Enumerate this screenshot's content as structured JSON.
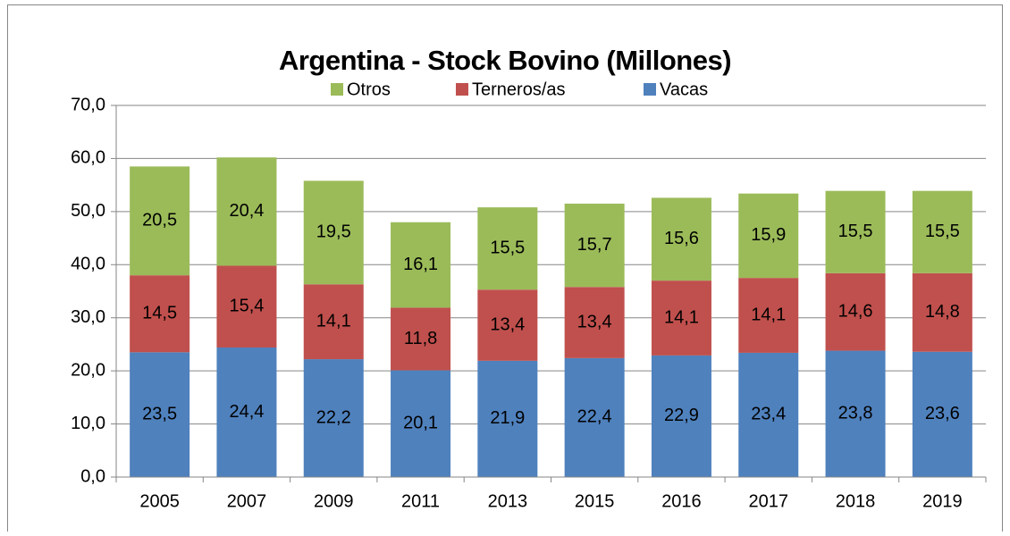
{
  "chart_data": {
    "type": "stacked_bar",
    "title": "Argentina - Stock Bovino (Millones)",
    "categories": [
      "2005",
      "2007",
      "2009",
      "2011",
      "2013",
      "2015",
      "2016",
      "2017",
      "2018",
      "2019"
    ],
    "series": [
      {
        "name": "Vacas",
        "color": "#4f81bd",
        "values": [
          23.5,
          24.4,
          22.2,
          20.1,
          21.9,
          22.4,
          22.9,
          23.4,
          23.8,
          23.6
        ],
        "value_labels": [
          "23,5",
          "24,4",
          "22,2",
          "20,1",
          "21,9",
          "22,4",
          "22,9",
          "23,4",
          "23,8",
          "23,6"
        ]
      },
      {
        "name": "Terneros/as",
        "color": "#c0504d",
        "values": [
          14.5,
          15.4,
          14.1,
          11.8,
          13.4,
          13.4,
          14.1,
          14.1,
          14.6,
          14.8
        ],
        "value_labels": [
          "14,5",
          "15,4",
          "14,1",
          "11,8",
          "13,4",
          "13,4",
          "14,1",
          "14,1",
          "14,6",
          "14,8"
        ]
      },
      {
        "name": "Otros",
        "color": "#9bbb59",
        "values": [
          20.5,
          20.4,
          19.5,
          16.1,
          15.5,
          15.7,
          15.6,
          15.9,
          15.5,
          15.5
        ],
        "value_labels": [
          "20,5",
          "20,4",
          "19,5",
          "16,1",
          "15,5",
          "15,7",
          "15,6",
          "15,9",
          "15,5",
          "15,5"
        ]
      }
    ],
    "ylim": [
      0,
      70
    ],
    "yticks": [
      {
        "value": 0,
        "label": "0,0"
      },
      {
        "value": 10,
        "label": "10,0"
      },
      {
        "value": 20,
        "label": "20,0"
      },
      {
        "value": 30,
        "label": "30,0"
      },
      {
        "value": 40,
        "label": "40,0"
      },
      {
        "value": 50,
        "label": "50,0"
      },
      {
        "value": 60,
        "label": "60,0"
      },
      {
        "value": 70,
        "label": "70,0"
      }
    ],
    "grid": true,
    "legend": "top"
  }
}
